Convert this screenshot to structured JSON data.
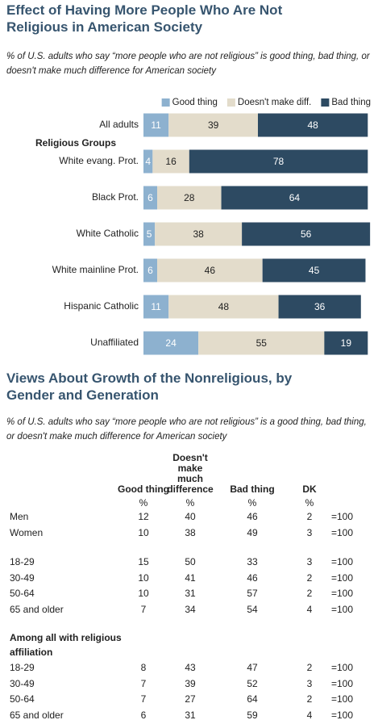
{
  "chart_data": {
    "type": "stacked-bar-horizontal",
    "title": "Effect of Having More People Who Are Not Religious in American Society",
    "subtitle": "% of U.S. adults who say “more people who are not religious” is good thing, bad thing, or doesn't make much difference for American society",
    "group_label": "Religious Groups",
    "categories": [
      "All adults",
      "White evang. Prot.",
      "Black Prot.",
      "White Catholic",
      "White mainline Prot.",
      "Hispanic Catholic",
      "Unaffiliated"
    ],
    "series": [
      {
        "name": "Good thing",
        "color": "#8db1cf",
        "values": [
          11,
          4,
          6,
          5,
          6,
          11,
          24
        ]
      },
      {
        "name": "Doesn't make diff.",
        "color": "#e3dccb",
        "values": [
          39,
          16,
          28,
          38,
          46,
          48,
          55
        ]
      },
      {
        "name": "Bad thing",
        "color": "#2d4a62",
        "values": [
          48,
          78,
          64,
          56,
          45,
          36,
          19
        ]
      }
    ],
    "xlim": [
      0,
      100
    ],
    "legend": "top-right"
  },
  "table": {
    "title": "Views About Growth of the Nonreligious, by Gender and Generation",
    "subtitle": "% of U.S. adults who say “more people who are not religious” is a good thing, bad thing, or doesn't make much difference for American society",
    "columns": [
      "Good thing",
      "Doesn't make much difference",
      "Bad thing",
      "DK"
    ],
    "units": [
      "%",
      "%",
      "%",
      "%"
    ],
    "sections": [
      {
        "rows": [
          {
            "label": "Men",
            "values": [
              12,
              40,
              46,
              2
            ],
            "total": "=100"
          },
          {
            "label": "Women",
            "values": [
              10,
              38,
              49,
              3
            ],
            "total": "=100"
          }
        ]
      },
      {
        "rows": [
          {
            "label": "18-29",
            "values": [
              15,
              50,
              33,
              3
            ],
            "total": "=100"
          },
          {
            "label": "30-49",
            "values": [
              10,
              41,
              46,
              2
            ],
            "total": "=100"
          },
          {
            "label": "50-64",
            "values": [
              10,
              31,
              57,
              2
            ],
            "total": "=100"
          },
          {
            "label": "65 and older",
            "values": [
              7,
              34,
              54,
              4
            ],
            "total": "=100"
          }
        ]
      },
      {
        "heading": "Among all with religious affiliation",
        "rows": [
          {
            "label": "18-29",
            "values": [
              8,
              43,
              47,
              2
            ],
            "total": "=100"
          },
          {
            "label": "30-49",
            "values": [
              7,
              39,
              52,
              3
            ],
            "total": "=100"
          },
          {
            "label": "50-64",
            "values": [
              7,
              27,
              64,
              2
            ],
            "total": "=100"
          },
          {
            "label": "65 and older",
            "values": [
              6,
              31,
              59,
              4
            ],
            "total": "=100"
          }
        ]
      }
    ]
  }
}
